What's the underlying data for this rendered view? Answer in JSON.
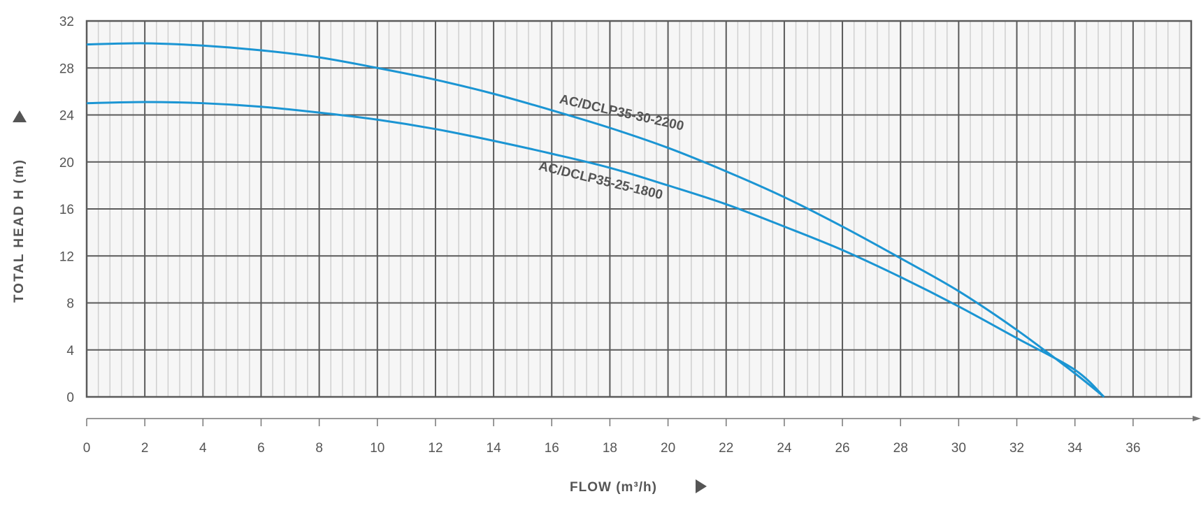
{
  "chart_data": {
    "type": "line",
    "xlabel": "FLOW (m³/h)",
    "ylabel": "TOTAL HEAD H (m)",
    "xlim": [
      0,
      38
    ],
    "ylim": [
      0,
      32
    ],
    "xticks": [
      0,
      2,
      4,
      6,
      8,
      10,
      12,
      14,
      16,
      18,
      20,
      22,
      24,
      26,
      28,
      30,
      32,
      34,
      36
    ],
    "yticks": [
      0,
      4,
      8,
      12,
      16,
      20,
      24,
      28,
      32
    ],
    "grid": true,
    "colors": {
      "curve": "#1b95d3",
      "major_grid": "#5a5a5a",
      "minor_grid": "#cfcfcf",
      "plot_bg": "#f6f6f6",
      "text": "#555555"
    },
    "series": [
      {
        "name": "AC/DCLP35-30-2200",
        "x": [
          0,
          2,
          4,
          6,
          8,
          10,
          12,
          14,
          16,
          18,
          20,
          22,
          24,
          26,
          28,
          30,
          32,
          34,
          35
        ],
        "y": [
          30,
          30.1,
          29.9,
          29.5,
          28.9,
          28,
          27,
          25.8,
          24.4,
          22.9,
          21.2,
          19.2,
          17,
          14.5,
          11.8,
          9.0,
          5.7,
          2.0,
          0
        ]
      },
      {
        "name": "AC/DCLP35-25-1800",
        "x": [
          0,
          2,
          4,
          6,
          8,
          10,
          12,
          14,
          16,
          18,
          20,
          22,
          24,
          26,
          28,
          30,
          32,
          34,
          35
        ],
        "y": [
          25,
          25.1,
          25,
          24.7,
          24.2,
          23.6,
          22.8,
          21.8,
          20.7,
          19.5,
          18,
          16.4,
          14.5,
          12.5,
          10.2,
          7.7,
          5.0,
          2.3,
          0
        ]
      }
    ]
  }
}
